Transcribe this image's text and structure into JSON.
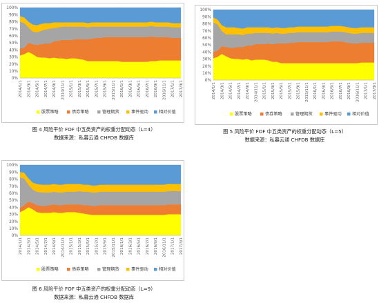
{
  "common": {
    "dates": [
      "2014/1/1",
      "2014/3/1",
      "2014/5/1",
      "2014/7/1",
      "2014/9/1",
      "2014/11/1",
      "2015/1/1",
      "2015/3/1",
      "2015/5/1",
      "2015/7/1",
      "2015/9/1",
      "2015/11/1",
      "2016/1/1",
      "2016/3/1",
      "2016/5/1",
      "2016/7/1",
      "2016/9/1",
      "2016/11/1",
      "2017/1/1",
      "2017/3/1"
    ],
    "yticks": [
      "0%",
      "10%",
      "20%",
      "30%",
      "40%",
      "50%",
      "60%",
      "70%",
      "80%",
      "90%",
      "100%"
    ],
    "legend": [
      {
        "name": "股票策略",
        "color": "#ffff00"
      },
      {
        "name": "债券策略",
        "color": "#ed7d31"
      },
      {
        "name": "管理期货",
        "color": "#a5a5a5"
      },
      {
        "name": "事件驱动",
        "color": "#ffc000"
      },
      {
        "name": "相对价值",
        "color": "#5b9bd5"
      }
    ]
  },
  "chart_data": [
    {
      "type": "area",
      "stacked_percent": true,
      "ylim": [
        0,
        100
      ],
      "x": [
        "2014/1/1",
        "2014/2/1",
        "2014/3/1",
        "2014/4/1",
        "2014/5/1",
        "2014/6/1",
        "2014/7/1",
        "2014/8/1",
        "2014/9/1",
        "2014/10/1",
        "2014/11/1",
        "2014/12/1",
        "2015/1/1",
        "2015/2/1",
        "2015/3/1",
        "2015/4/1",
        "2015/5/1",
        "2015/6/1",
        "2015/7/1",
        "2015/8/1",
        "2015/9/1",
        "2015/10/1",
        "2015/11/1",
        "2015/12/1",
        "2016/1/1",
        "2016/2/1",
        "2016/3/1",
        "2016/4/1",
        "2016/5/1",
        "2016/6/1",
        "2016/7/1",
        "2016/8/1",
        "2016/9/1",
        "2016/10/1",
        "2016/11/1",
        "2016/12/1",
        "2017/1/1",
        "2017/2/1",
        "2017/3/1"
      ],
      "series": [
        {
          "name": "股票策略",
          "values": [
            32,
            34,
            37,
            34,
            30,
            29,
            29,
            28,
            29,
            28,
            28,
            27,
            28,
            28,
            27,
            26,
            24,
            24,
            24,
            24,
            24,
            24,
            24,
            24,
            23,
            23,
            23,
            23,
            23,
            23,
            23,
            24,
            24,
            25,
            25,
            25,
            25,
            25,
            25
          ]
        },
        {
          "name": "债券策略",
          "values": [
            10,
            9,
            13,
            14,
            17,
            19,
            20,
            21,
            23,
            25,
            26,
            27,
            26,
            27,
            28,
            29,
            31,
            32,
            33,
            33,
            34,
            34,
            34,
            34,
            35,
            35,
            35,
            35,
            35,
            35,
            35,
            35,
            34,
            33,
            33,
            33,
            32,
            32,
            32
          ]
        },
        {
          "name": "管理期货",
          "values": [
            38,
            35,
            22,
            18,
            18,
            19,
            20,
            21,
            19,
            19,
            19,
            19,
            19,
            18,
            18,
            18,
            17,
            17,
            16,
            16,
            15,
            15,
            15,
            15,
            15,
            15,
            15,
            15,
            15,
            15,
            15,
            15,
            15,
            15,
            15,
            15,
            15,
            15,
            15
          ]
        },
        {
          "name": "事件驱动",
          "values": [
            8,
            8,
            8,
            10,
            10,
            10,
            9,
            8,
            8,
            7,
            6,
            6,
            6,
            6,
            6,
            6,
            6,
            6,
            6,
            6,
            6,
            6,
            6,
            6,
            6,
            6,
            6,
            6,
            6,
            6,
            6,
            6,
            6,
            6,
            6,
            6,
            6,
            6,
            6
          ]
        },
        {
          "name": "相对价值",
          "values": [
            12,
            14,
            20,
            24,
            25,
            23,
            22,
            22,
            21,
            21,
            21,
            21,
            21,
            21,
            21,
            21,
            22,
            21,
            21,
            21,
            21,
            21,
            21,
            21,
            21,
            21,
            21,
            21,
            21,
            21,
            21,
            20,
            21,
            21,
            21,
            21,
            22,
            22,
            22
          ]
        }
      ],
      "caption": "图 4 风险平价 FOF 中五类资产的权重分配动态（L=4）",
      "source": "数据来源：私募云通 CHFDB 数据库"
    },
    {
      "type": "area",
      "stacked_percent": true,
      "ylim": [
        0,
        100
      ],
      "x": [
        "2014/1/1",
        "2014/2/1",
        "2014/3/1",
        "2014/4/1",
        "2014/5/1",
        "2014/6/1",
        "2014/7/1",
        "2014/8/1",
        "2014/9/1",
        "2014/10/1",
        "2014/11/1",
        "2014/12/1",
        "2015/1/1",
        "2015/2/1",
        "2015/3/1",
        "2015/4/1",
        "2015/5/1",
        "2015/6/1",
        "2015/7/1",
        "2015/8/1",
        "2015/9/1",
        "2015/10/1",
        "2015/11/1",
        "2015/12/1",
        "2016/1/1",
        "2016/2/1",
        "2016/3/1",
        "2016/4/1",
        "2016/5/1",
        "2016/6/1",
        "2016/7/1",
        "2016/8/1",
        "2016/9/1",
        "2016/10/1",
        "2016/11/1",
        "2016/12/1",
        "2017/1/1",
        "2017/2/1",
        "2017/3/1"
      ],
      "series": [
        {
          "name": "股票策略",
          "values": [
            31,
            33,
            37,
            34,
            31,
            30,
            30,
            29,
            30,
            28,
            29,
            29,
            29,
            28,
            26,
            26,
            24,
            24,
            24,
            24,
            24,
            24,
            24,
            24,
            24,
            24,
            24,
            24,
            24,
            24,
            24,
            24,
            24,
            24,
            24,
            25,
            25,
            25,
            25
          ]
        },
        {
          "name": "债券策略",
          "values": [
            9,
            9,
            11,
            13,
            15,
            16,
            17,
            18,
            19,
            21,
            22,
            22,
            22,
            24,
            25,
            26,
            28,
            28,
            29,
            29,
            30,
            30,
            30,
            30,
            30,
            30,
            30,
            30,
            31,
            31,
            31,
            30,
            29,
            28,
            28,
            28,
            28,
            28,
            28
          ]
        },
        {
          "name": "管理期货",
          "values": [
            42,
            37,
            22,
            18,
            19,
            19,
            18,
            17,
            17,
            17,
            16,
            16,
            16,
            15,
            15,
            15,
            14,
            14,
            14,
            14,
            14,
            14,
            14,
            14,
            14,
            14,
            14,
            14,
            14,
            14,
            14,
            14,
            14,
            14,
            14,
            14,
            14,
            14,
            14
          ]
        },
        {
          "name": "事件驱动",
          "values": [
            7,
            7,
            8,
            10,
            10,
            10,
            9,
            9,
            9,
            9,
            8,
            8,
            8,
            8,
            8,
            8,
            8,
            8,
            8,
            8,
            8,
            8,
            8,
            8,
            8,
            8,
            8,
            8,
            8,
            8,
            8,
            8,
            8,
            8,
            8,
            8,
            8,
            8,
            8
          ]
        },
        {
          "name": "相对价值",
          "values": [
            11,
            14,
            22,
            25,
            25,
            25,
            26,
            27,
            25,
            25,
            25,
            25,
            25,
            25,
            26,
            25,
            26,
            26,
            25,
            25,
            24,
            24,
            24,
            24,
            24,
            24,
            24,
            24,
            23,
            23,
            23,
            24,
            25,
            26,
            26,
            25,
            25,
            25,
            25
          ]
        }
      ],
      "caption": "图 5 风险平价 FOF 中五类资产的权重分配动态（L=5）",
      "source": "数据来源：私募云通 CHFDB 数据库"
    },
    {
      "type": "area",
      "stacked_percent": true,
      "ylim": [
        0,
        100
      ],
      "x": [
        "2014/1/1",
        "2014/2/1",
        "2014/3/1",
        "2014/4/1",
        "2014/5/1",
        "2014/6/1",
        "2014/7/1",
        "2014/8/1",
        "2014/9/1",
        "2014/10/1",
        "2014/11/1",
        "2014/12/1",
        "2015/1/1",
        "2015/2/1",
        "2015/3/1",
        "2015/4/1",
        "2015/5/1",
        "2015/6/1",
        "2015/7/1",
        "2015/8/1",
        "2015/9/1",
        "2015/10/1",
        "2015/11/1",
        "2015/12/1",
        "2016/1/1",
        "2016/2/1",
        "2016/3/1",
        "2016/4/1",
        "2016/5/1",
        "2016/6/1",
        "2016/7/1",
        "2016/8/1",
        "2016/9/1",
        "2016/10/1",
        "2016/11/1",
        "2016/12/1",
        "2017/1/1",
        "2017/2/1",
        "2017/3/1"
      ],
      "series": [
        {
          "name": "股票策略",
          "values": [
            33,
            36,
            40,
            37,
            33,
            32,
            32,
            32,
            33,
            32,
            32,
            33,
            33,
            33,
            32,
            31,
            30,
            29,
            29,
            29,
            29,
            29,
            29,
            29,
            29,
            29,
            29,
            29,
            29,
            29,
            29,
            29,
            29,
            29,
            29,
            30,
            30,
            30,
            30
          ]
        },
        {
          "name": "债券策略",
          "values": [
            6,
            7,
            8,
            9,
            10,
            10,
            10,
            11,
            11,
            11,
            11,
            11,
            11,
            11,
            12,
            12,
            13,
            13,
            13,
            14,
            14,
            14,
            14,
            14,
            14,
            14,
            14,
            14,
            14,
            14,
            14,
            14,
            14,
            14,
            14,
            14,
            14,
            14,
            14
          ]
        },
        {
          "name": "管理期货",
          "values": [
            43,
            38,
            24,
            19,
            19,
            19,
            19,
            18,
            18,
            18,
            18,
            18,
            18,
            18,
            19,
            19,
            19,
            19,
            19,
            19,
            19,
            19,
            19,
            19,
            19,
            19,
            19,
            19,
            19,
            19,
            19,
            19,
            19,
            19,
            19,
            19,
            19,
            19,
            19
          ]
        },
        {
          "name": "事件驱动",
          "values": [
            8,
            8,
            9,
            10,
            11,
            11,
            11,
            11,
            11,
            11,
            11,
            11,
            11,
            11,
            10,
            10,
            10,
            10,
            10,
            10,
            10,
            10,
            10,
            10,
            10,
            10,
            10,
            10,
            10,
            10,
            10,
            10,
            10,
            10,
            10,
            10,
            10,
            10,
            10
          ]
        },
        {
          "name": "相对价值",
          "values": [
            10,
            11,
            19,
            25,
            27,
            28,
            28,
            28,
            27,
            28,
            28,
            27,
            27,
            27,
            27,
            28,
            28,
            29,
            29,
            28,
            28,
            28,
            28,
            28,
            28,
            28,
            28,
            28,
            28,
            28,
            28,
            28,
            28,
            28,
            28,
            27,
            27,
            27,
            27
          ]
        }
      ],
      "caption": "图 6 风险平价 FOF 中五类资产的权重分配动态（L=9）",
      "source": "数据来源：私募云通 CHFDB 数据库"
    }
  ]
}
